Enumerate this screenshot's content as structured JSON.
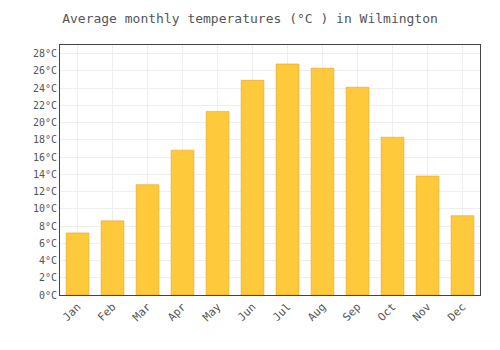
{
  "chart_data": {
    "type": "bar",
    "title": "Average monthly temperatures (°C ) in Wilmington",
    "categories": [
      "Jan",
      "Feb",
      "Mar",
      "Apr",
      "May",
      "Jun",
      "Jul",
      "Aug",
      "Sep",
      "Oct",
      "Nov",
      "Dec"
    ],
    "values": [
      7.2,
      8.6,
      12.8,
      16.8,
      21.3,
      24.9,
      26.8,
      26.3,
      24.1,
      18.3,
      13.8,
      9.2
    ],
    "color": "#FFC93C",
    "ylim": [
      0,
      29
    ],
    "yticks": [
      {
        "value": 0,
        "label": "0°C"
      },
      {
        "value": 2,
        "label": "2°C"
      },
      {
        "value": 4,
        "label": "4°C"
      },
      {
        "value": 6,
        "label": "6°C"
      },
      {
        "value": 8,
        "label": "8°C"
      },
      {
        "value": 10,
        "label": "10°C"
      },
      {
        "value": 12,
        "label": "12°C"
      },
      {
        "value": 14,
        "label": "14°C"
      },
      {
        "value": 16,
        "label": "16°C"
      },
      {
        "value": 18,
        "label": "18°C"
      },
      {
        "value": 20,
        "label": "20°C"
      },
      {
        "value": 22,
        "label": "22°C"
      },
      {
        "value": 24,
        "label": "24°C"
      },
      {
        "value": 26,
        "label": "26°C"
      },
      {
        "value": 28,
        "label": "28°C"
      }
    ],
    "grid": true
  }
}
